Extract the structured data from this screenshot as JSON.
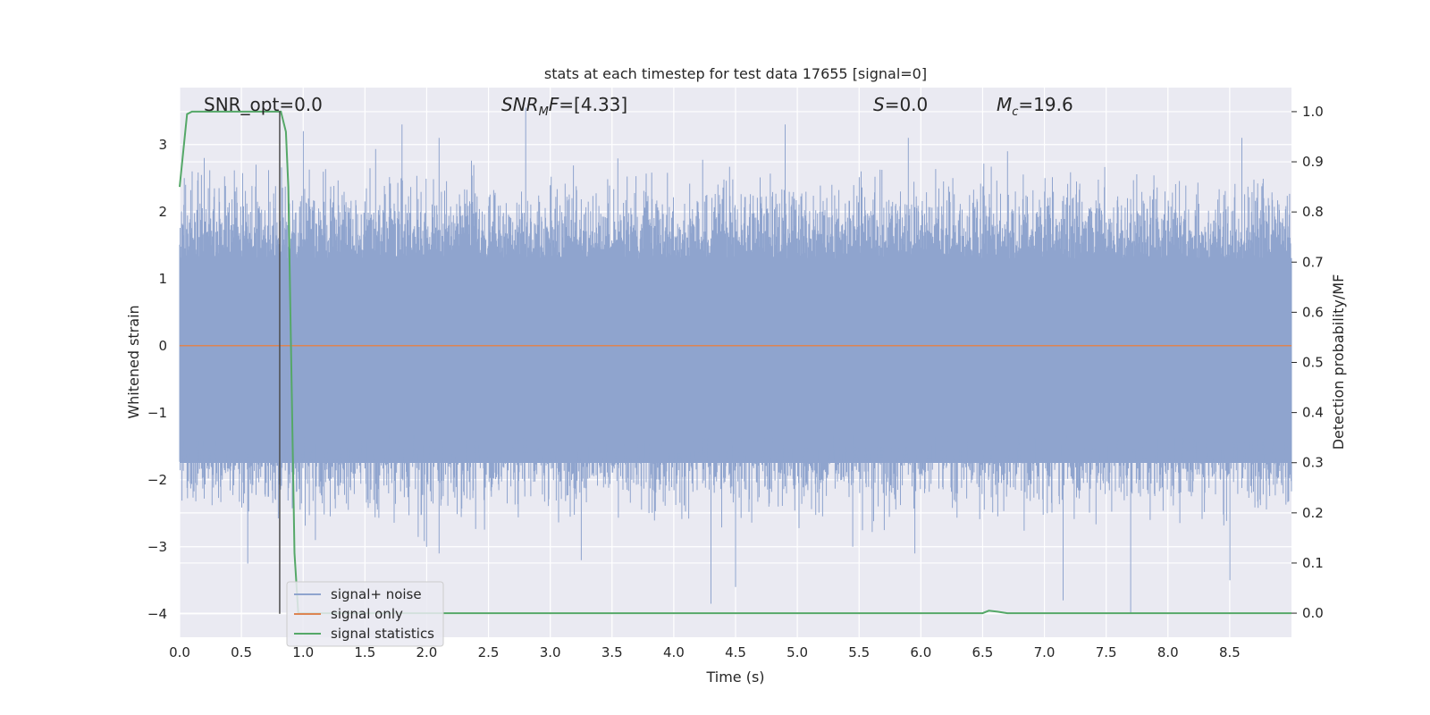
{
  "chart_data": {
    "type": "line",
    "title": "stats at each timestep for test data 17655 [signal=0]",
    "xlabel": "Time (s)",
    "ylabel_left": "Whitened strain",
    "ylabel_right": "Detection probability/MF",
    "xlim": [
      0.0,
      9.0
    ],
    "ylim_left": [
      -4.35,
      3.85
    ],
    "ylim_right": [
      -0.048,
      1.048
    ],
    "x_ticks": [
      "0.0",
      "0.5",
      "1.0",
      "1.5",
      "2.0",
      "2.5",
      "3.0",
      "3.5",
      "4.0",
      "4.5",
      "5.0",
      "5.5",
      "6.0",
      "6.5",
      "7.0",
      "7.5",
      "8.0",
      "8.5"
    ],
    "y_left_ticks": [
      "−4",
      "−3",
      "−2",
      "−1",
      "0",
      "1",
      "2",
      "3"
    ],
    "y_right_ticks": [
      "0.0",
      "0.1",
      "0.2",
      "0.3",
      "0.4",
      "0.5",
      "0.6",
      "0.7",
      "0.8",
      "0.9",
      "1.0"
    ],
    "grid": true,
    "legend_placement": "lower-left",
    "marker_line_x": 0.81,
    "marker_line_range": [
      -4.0,
      3.5
    ],
    "annotations": {
      "snr_opt": "SNR_opt=0.0",
      "snr_mf_sym": "SNR",
      "snr_mf_sub": "M",
      "snr_mf_f": "F",
      "snr_mf_val": "=[4.33]",
      "s_sym": "S",
      "s_val": "=0.0",
      "mc_sym": "M",
      "mc_sub": "c",
      "mc_val": "=19.6"
    },
    "series": [
      {
        "name": "signal+ noise",
        "color": "#8fa4ce",
        "axis": "left",
        "description_range": [
          -4.0,
          3.55
        ],
        "envelope_sample_peaks": [
          [
            0.05,
            2.4
          ],
          [
            0.1,
            2.6
          ],
          [
            0.2,
            2.8
          ],
          [
            0.45,
            2.3
          ],
          [
            0.62,
            2.7
          ],
          [
            1.0,
            3.2
          ],
          [
            1.8,
            3.3
          ],
          [
            2.1,
            3.1
          ],
          [
            2.8,
            3.55
          ],
          [
            4.9,
            3.3
          ],
          [
            5.9,
            3.1
          ],
          [
            6.7,
            2.9
          ],
          [
            8.6,
            3.1
          ]
        ],
        "envelope_sample_troughs": [
          [
            0.55,
            -3.25
          ],
          [
            1.1,
            -2.9
          ],
          [
            2.0,
            -3.0
          ],
          [
            2.1,
            -3.1
          ],
          [
            3.25,
            -3.2
          ],
          [
            4.3,
            -3.85
          ],
          [
            4.5,
            -3.6
          ],
          [
            5.45,
            -3.0
          ],
          [
            5.95,
            -3.1
          ],
          [
            7.15,
            -3.8
          ],
          [
            7.7,
            -4.0
          ],
          [
            8.5,
            -3.5
          ]
        ]
      },
      {
        "name": "signal only",
        "color": "#dd8452",
        "axis": "left",
        "x": [
          0.0,
          9.0
        ],
        "y": [
          0.0,
          0.0
        ]
      },
      {
        "name": "signal statistics",
        "color": "#55a868",
        "axis": "right",
        "x": [
          0.0,
          0.06,
          0.1,
          0.15,
          0.2,
          0.5,
          0.8,
          0.82,
          0.86,
          0.88,
          0.9,
          0.93,
          0.96,
          1.0,
          6.5,
          6.55,
          6.62,
          6.7,
          9.0
        ],
        "y": [
          0.85,
          0.995,
          1.0,
          1.0,
          1.0,
          1.0,
          1.0,
          1.0,
          0.96,
          0.85,
          0.55,
          0.12,
          0.0,
          0.0,
          0.0,
          0.005,
          0.003,
          0.0,
          0.0
        ]
      }
    ]
  },
  "legend": {
    "items": [
      {
        "label": "signal+ noise",
        "color": "#8fa4ce"
      },
      {
        "label": "signal only",
        "color": "#dd8452"
      },
      {
        "label": "signal statistics",
        "color": "#55a868"
      }
    ]
  },
  "colors": {
    "plot_bg": "#eaeaf2",
    "grid": "#ffffff",
    "marker_line": "#4c4c4c"
  }
}
